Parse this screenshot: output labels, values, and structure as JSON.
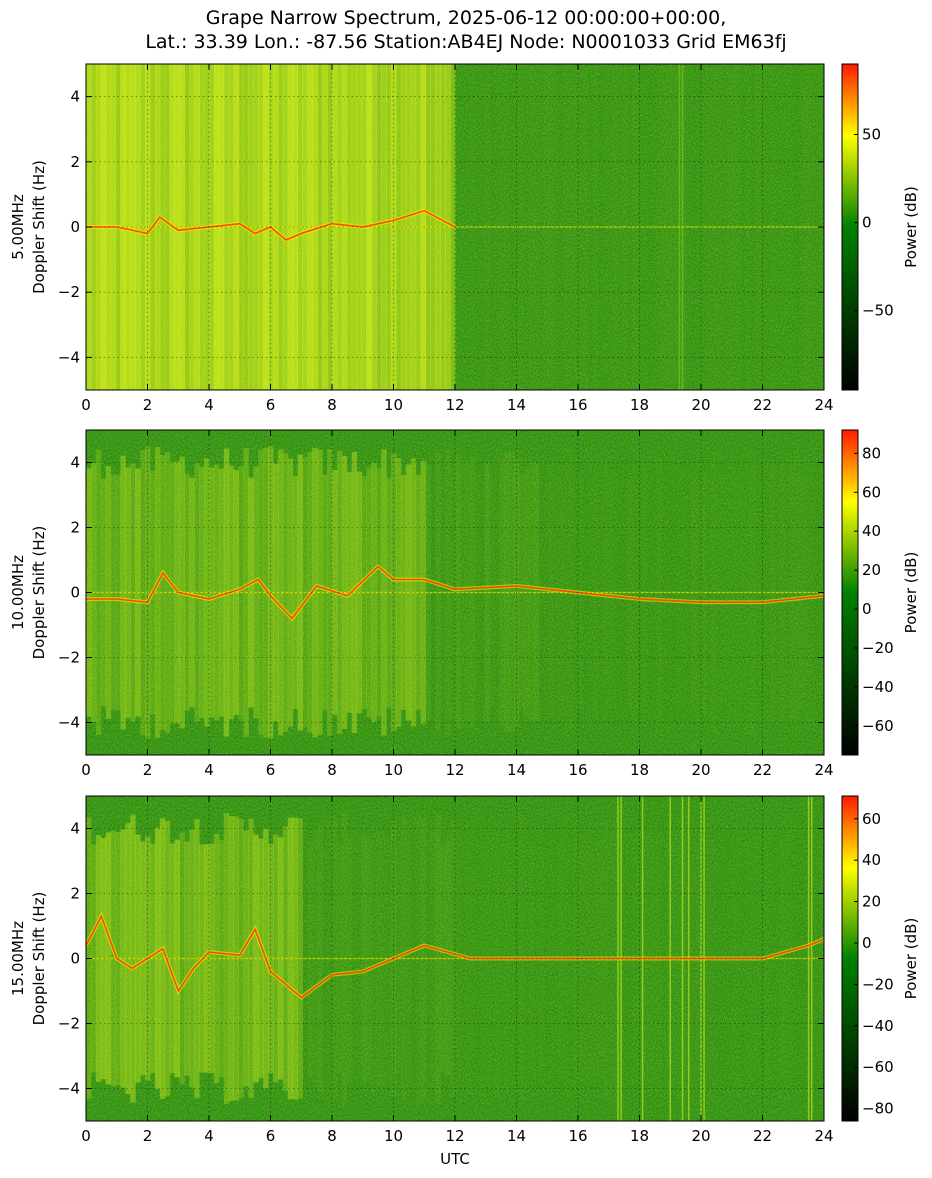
{
  "figure": {
    "title_line1": "Grape Narrow Spectrum, 2025-06-12 00:00:00+00:00,",
    "title_line2": "Lat.: 33.39 Lon.: -87.56 Station:AB4EJ Node: N0001033 Grid EM63fj",
    "xlabel": "UTC"
  },
  "chart_data": [
    {
      "type": "heatmap",
      "band": "5.00MHz",
      "ylabel_line1": "5.00MHz",
      "ylabel_line2": "Doppler Shift (Hz)",
      "xlim": [
        0,
        24
      ],
      "ylim": [
        -5,
        5
      ],
      "x_ticks": [
        0,
        2,
        4,
        6,
        8,
        10,
        12,
        14,
        16,
        18,
        20,
        22,
        24
      ],
      "y_ticks": [
        -4,
        -2,
        0,
        2,
        4
      ],
      "grid": true,
      "colorbar": {
        "label": "Power (dB)",
        "range": [
          -95,
          90
        ],
        "ticks": [
          -50,
          0,
          50
        ]
      },
      "colors": {
        "low": "#000000",
        "mid": "#008000",
        "high_mid": "#ffff00",
        "high": "#ff0000"
      },
      "description_regions": {
        "strong_activity_utc": [
          0,
          12
        ],
        "quiet_utc": [
          12,
          24
        ]
      },
      "doppler_trace": [
        [
          0,
          0
        ],
        [
          1,
          0
        ],
        [
          2,
          -0.2
        ],
        [
          2.4,
          0.3
        ],
        [
          3,
          -0.1
        ],
        [
          4,
          0
        ],
        [
          5,
          0.1
        ],
        [
          5.5,
          -0.2
        ],
        [
          6,
          0
        ],
        [
          6.5,
          -0.4
        ],
        [
          7,
          -0.2
        ],
        [
          8,
          0.1
        ],
        [
          9,
          0
        ],
        [
          10,
          0.2
        ],
        [
          11,
          0.5
        ],
        [
          12,
          0
        ]
      ]
    },
    {
      "type": "heatmap",
      "band": "10.00MHz",
      "ylabel_line1": "10.00MHz",
      "ylabel_line2": "Doppler Shift (Hz)",
      "xlim": [
        0,
        24
      ],
      "ylim": [
        -5,
        5
      ],
      "x_ticks": [
        0,
        2,
        4,
        6,
        8,
        10,
        12,
        14,
        16,
        18,
        20,
        22,
        24
      ],
      "y_ticks": [
        -4,
        -2,
        0,
        2,
        4
      ],
      "grid": true,
      "colorbar": {
        "label": "Power (dB)",
        "range": [
          -75,
          92
        ],
        "ticks": [
          -60,
          -40,
          -20,
          0,
          20,
          40,
          60,
          80
        ]
      },
      "colors": {
        "low": "#000000",
        "mid": "#008000",
        "high_mid": "#ffff00",
        "high": "#ff0000"
      },
      "doppler_trace": [
        [
          0,
          -0.2
        ],
        [
          1,
          -0.2
        ],
        [
          2,
          -0.3
        ],
        [
          2.5,
          0.6
        ],
        [
          3,
          0
        ],
        [
          4,
          -0.2
        ],
        [
          5,
          0.1
        ],
        [
          5.6,
          0.4
        ],
        [
          6,
          -0.1
        ],
        [
          6.7,
          -0.8
        ],
        [
          7.5,
          0.2
        ],
        [
          8.5,
          -0.1
        ],
        [
          9.5,
          0.8
        ],
        [
          10,
          0.4
        ],
        [
          11,
          0.4
        ],
        [
          12,
          0.1
        ],
        [
          14,
          0.2
        ],
        [
          16,
          0
        ],
        [
          18,
          -0.2
        ],
        [
          20,
          -0.3
        ],
        [
          22,
          -0.3
        ],
        [
          24,
          -0.1
        ]
      ]
    },
    {
      "type": "heatmap",
      "band": "15.00MHz",
      "ylabel_line1": "15.00MHz",
      "ylabel_line2": "Doppler Shift (Hz)",
      "xlim": [
        0,
        24
      ],
      "ylim": [
        -5,
        5
      ],
      "x_ticks": [
        0,
        2,
        4,
        6,
        8,
        10,
        12,
        14,
        16,
        18,
        20,
        22,
        24
      ],
      "y_ticks": [
        -4,
        -2,
        0,
        2,
        4
      ],
      "grid": true,
      "colorbar": {
        "label": "Power (dB)",
        "range": [
          -86,
          71
        ],
        "ticks": [
          -80,
          -60,
          -40,
          -20,
          0,
          20,
          40,
          60
        ]
      },
      "colors": {
        "low": "#000000",
        "mid": "#008000",
        "high_mid": "#ffff00",
        "high": "#ff0000"
      },
      "doppler_trace": [
        [
          0,
          0.4
        ],
        [
          0.5,
          1.3
        ],
        [
          1,
          0
        ],
        [
          1.5,
          -0.3
        ],
        [
          2,
          0
        ],
        [
          2.5,
          0.3
        ],
        [
          3,
          -1
        ],
        [
          3.5,
          -0.3
        ],
        [
          4,
          0.2
        ],
        [
          5,
          0.1
        ],
        [
          5.5,
          0.9
        ],
        [
          6,
          -0.4
        ],
        [
          7,
          -1.2
        ],
        [
          8,
          -0.5
        ],
        [
          9,
          -0.4
        ],
        [
          10,
          0
        ],
        [
          11,
          0.4
        ],
        [
          12.5,
          0
        ],
        [
          14,
          0
        ],
        [
          16,
          0
        ],
        [
          18,
          0
        ],
        [
          20,
          0
        ],
        [
          22,
          0
        ],
        [
          23.5,
          0.4
        ],
        [
          24,
          0.6
        ]
      ]
    }
  ]
}
